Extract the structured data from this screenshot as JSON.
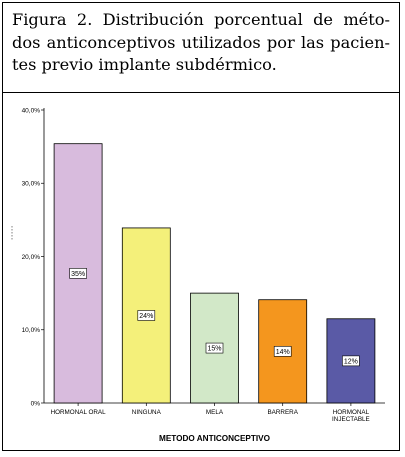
{
  "caption": {
    "line1": "Figura 2. Distribución porcentual de méto-",
    "line2": "dos anticonceptivos utilizados por las pacien-",
    "line3": "tes previo implante subdérmico."
  },
  "chart_data": {
    "type": "bar",
    "categories": [
      "HORMONAL ORAL",
      "NINGUNA",
      "MELA",
      "BARRERA",
      "HORMONAL INJECTABLE"
    ],
    "category_lines": [
      [
        "HORMONAL ORAL"
      ],
      [
        "NINGUNA"
      ],
      [
        "MELA"
      ],
      [
        "BARRERA"
      ],
      [
        "HORMONAL",
        "INJECTABLE"
      ]
    ],
    "values": [
      35.4,
      23.9,
      15.0,
      14.1,
      11.5
    ],
    "data_labels": [
      "35%",
      "24%",
      "15%",
      "14%",
      "12%"
    ],
    "colors": [
      "#d8bbdd",
      "#f4f07a",
      "#d2e8c8",
      "#f4961e",
      "#5a5aa6"
    ],
    "yticks": [
      "0%",
      "10,0%",
      "20,0%",
      "30,0%",
      "40,0%"
    ],
    "ylim": [
      0,
      40
    ],
    "xlabel": "METODO ANTICONCEPTIVO",
    "ylabel": "",
    "title": "",
    "grid": false,
    "legend": "none"
  }
}
